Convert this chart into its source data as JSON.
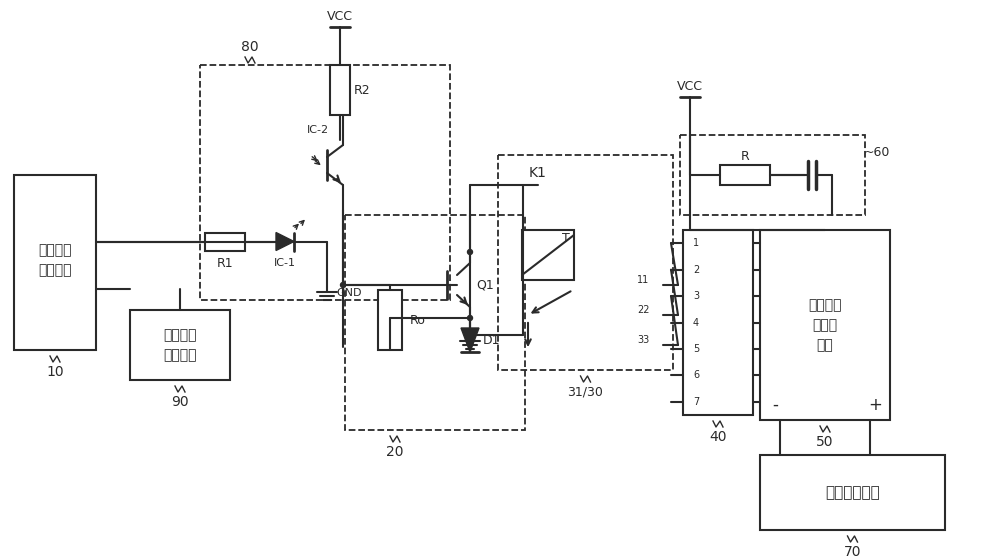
{
  "bg": "#ffffff",
  "lc": "#2a2a2a",
  "figsize": [
    10.0,
    5.6
  ],
  "dpi": 100,
  "texts": {
    "m10": [
      "放电保护",
      "控制模块"
    ],
    "m90": [
      "光纤光耦",
      "串口模块"
    ],
    "m50": [
      "激发高压",
      "压电源",
      "模块"
    ],
    "m70": "高压电源模块",
    "vcc": "VCC",
    "gnd": "GND",
    "r1": "R1",
    "r2": "R2",
    "ro": "Ro",
    "r": "R",
    "d1": "D1",
    "q1": "Q1",
    "ic1": "IC-1",
    "ic2": "IC-2",
    "k1": "K1",
    "t": "T",
    "n80": "80",
    "n20": "20",
    "n31_30": "31/30",
    "n40": "40",
    "n50": "50",
    "n60": "~60",
    "n70": "70",
    "n90": "90",
    "n10": "10",
    "n11": "11",
    "n22": "22",
    "n33": "33",
    "minus": "-",
    "plus": "+"
  }
}
